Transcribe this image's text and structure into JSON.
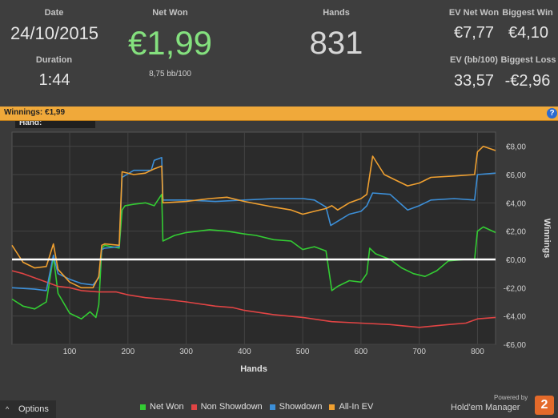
{
  "stats": {
    "date_label": "Date",
    "date_value": "24/10/2015",
    "duration_label": "Duration",
    "duration_value": "1:44",
    "net_won_label": "Net Won",
    "net_won_value": "€1,99",
    "net_won_sub": "8,75 bb/100",
    "hands_label": "Hands",
    "hands_value": "831",
    "ev_net_won_label": "EV Net Won",
    "ev_net_won_value": "€7,77",
    "biggest_win_label": "Biggest Win",
    "biggest_win_value": "€4,10",
    "ev_bb_label": "EV (bb/100)",
    "ev_bb_value": "33,57",
    "biggest_loss_label": "Biggest Loss",
    "biggest_loss_value": "-€2,96"
  },
  "winnings_bar": {
    "label": "Winnings: €1,99",
    "help": "?"
  },
  "chart_data": {
    "type": "line",
    "hover_label": "Hand:",
    "xlabel": "Hands",
    "ylabel": "Winnings",
    "xlim": [
      1,
      831
    ],
    "ylim": [
      -6,
      9
    ],
    "x_ticks": [
      100,
      200,
      300,
      400,
      500,
      600,
      700,
      800
    ],
    "y_ticks": [
      -6,
      -4,
      -2,
      0,
      2,
      4,
      6,
      8
    ],
    "y_tick_labels": [
      "-€6,00",
      "-€4,00",
      "-€2,00",
      "€0,00",
      "€2,00",
      "€4,00",
      "€6,00",
      "€8,00"
    ],
    "grid": true,
    "zero_line": true,
    "series": [
      {
        "name": "Net Won",
        "color": "#33cc33",
        "points": [
          [
            1,
            -2.8
          ],
          [
            20,
            -3.3
          ],
          [
            40,
            -3.5
          ],
          [
            60,
            -3.0
          ],
          [
            72,
            0.2
          ],
          [
            80,
            -2.4
          ],
          [
            100,
            -3.8
          ],
          [
            120,
            -4.2
          ],
          [
            135,
            -3.7
          ],
          [
            145,
            -4.1
          ],
          [
            150,
            -3.2
          ],
          [
            155,
            0.8
          ],
          [
            160,
            1.0
          ],
          [
            185,
            0.8
          ],
          [
            190,
            3.5
          ],
          [
            195,
            3.8
          ],
          [
            210,
            3.9
          ],
          [
            230,
            4.0
          ],
          [
            245,
            3.8
          ],
          [
            258,
            4.6
          ],
          [
            260,
            1.3
          ],
          [
            280,
            1.7
          ],
          [
            300,
            1.9
          ],
          [
            320,
            2.0
          ],
          [
            340,
            2.1
          ],
          [
            370,
            2.0
          ],
          [
            400,
            1.8
          ],
          [
            420,
            1.7
          ],
          [
            450,
            1.4
          ],
          [
            480,
            1.3
          ],
          [
            500,
            0.7
          ],
          [
            520,
            0.9
          ],
          [
            540,
            0.6
          ],
          [
            550,
            -2.2
          ],
          [
            560,
            -1.9
          ],
          [
            580,
            -1.5
          ],
          [
            600,
            -1.6
          ],
          [
            610,
            -1.0
          ],
          [
            615,
            0.8
          ],
          [
            625,
            0.4
          ],
          [
            650,
            0.0
          ],
          [
            670,
            -0.6
          ],
          [
            690,
            -1.0
          ],
          [
            710,
            -1.2
          ],
          [
            730,
            -0.8
          ],
          [
            750,
            -0.1
          ],
          [
            780,
            0.0
          ],
          [
            795,
            0.0
          ],
          [
            800,
            2.0
          ],
          [
            810,
            2.3
          ],
          [
            831,
            1.9
          ]
        ]
      },
      {
        "name": "Non Showdown",
        "color": "#e04444",
        "points": [
          [
            1,
            -0.8
          ],
          [
            20,
            -1.0
          ],
          [
            40,
            -1.3
          ],
          [
            60,
            -1.6
          ],
          [
            80,
            -1.9
          ],
          [
            100,
            -2.0
          ],
          [
            120,
            -2.2
          ],
          [
            150,
            -2.3
          ],
          [
            180,
            -2.3
          ],
          [
            200,
            -2.5
          ],
          [
            230,
            -2.7
          ],
          [
            260,
            -2.8
          ],
          [
            300,
            -3.0
          ],
          [
            350,
            -3.3
          ],
          [
            380,
            -3.4
          ],
          [
            400,
            -3.6
          ],
          [
            450,
            -3.9
          ],
          [
            500,
            -4.1
          ],
          [
            550,
            -4.4
          ],
          [
            600,
            -4.5
          ],
          [
            650,
            -4.6
          ],
          [
            700,
            -4.8
          ],
          [
            750,
            -4.6
          ],
          [
            780,
            -4.5
          ],
          [
            800,
            -4.2
          ],
          [
            831,
            -4.1
          ]
        ]
      },
      {
        "name": "Showdown",
        "color": "#3c8fd8",
        "points": [
          [
            1,
            -2.0
          ],
          [
            40,
            -2.1
          ],
          [
            60,
            -2.2
          ],
          [
            72,
            0.3
          ],
          [
            80,
            -1.0
          ],
          [
            100,
            -1.4
          ],
          [
            120,
            -1.7
          ],
          [
            140,
            -1.8
          ],
          [
            150,
            -1.3
          ],
          [
            155,
            0.7
          ],
          [
            160,
            0.8
          ],
          [
            185,
            0.9
          ],
          [
            190,
            5.8
          ],
          [
            210,
            6.3
          ],
          [
            230,
            6.3
          ],
          [
            240,
            6.3
          ],
          [
            245,
            7.0
          ],
          [
            258,
            7.2
          ],
          [
            260,
            4.2
          ],
          [
            300,
            4.2
          ],
          [
            350,
            4.1
          ],
          [
            400,
            4.2
          ],
          [
            450,
            4.3
          ],
          [
            500,
            4.3
          ],
          [
            520,
            4.2
          ],
          [
            540,
            3.7
          ],
          [
            548,
            2.4
          ],
          [
            560,
            2.7
          ],
          [
            580,
            3.2
          ],
          [
            600,
            3.4
          ],
          [
            610,
            3.8
          ],
          [
            620,
            4.7
          ],
          [
            650,
            4.6
          ],
          [
            680,
            3.5
          ],
          [
            700,
            3.8
          ],
          [
            720,
            4.2
          ],
          [
            760,
            4.3
          ],
          [
            795,
            4.2
          ],
          [
            800,
            6.0
          ],
          [
            831,
            6.1
          ]
        ]
      },
      {
        "name": "All-In EV",
        "color": "#f0a030",
        "points": [
          [
            1,
            1.0
          ],
          [
            20,
            -0.2
          ],
          [
            40,
            -0.6
          ],
          [
            60,
            -0.5
          ],
          [
            72,
            1.1
          ],
          [
            80,
            -0.7
          ],
          [
            100,
            -1.6
          ],
          [
            120,
            -2.0
          ],
          [
            140,
            -2.0
          ],
          [
            150,
            -1.2
          ],
          [
            155,
            1.0
          ],
          [
            160,
            1.1
          ],
          [
            185,
            1.0
          ],
          [
            190,
            6.2
          ],
          [
            210,
            6.0
          ],
          [
            230,
            6.1
          ],
          [
            240,
            6.3
          ],
          [
            245,
            6.4
          ],
          [
            258,
            6.6
          ],
          [
            260,
            4.0
          ],
          [
            300,
            4.1
          ],
          [
            340,
            4.3
          ],
          [
            370,
            4.4
          ],
          [
            400,
            4.1
          ],
          [
            450,
            3.7
          ],
          [
            480,
            3.5
          ],
          [
            500,
            3.2
          ],
          [
            520,
            3.4
          ],
          [
            540,
            3.6
          ],
          [
            550,
            3.8
          ],
          [
            560,
            3.5
          ],
          [
            580,
            4.0
          ],
          [
            600,
            4.3
          ],
          [
            610,
            4.6
          ],
          [
            620,
            7.3
          ],
          [
            640,
            6.0
          ],
          [
            660,
            5.6
          ],
          [
            680,
            5.2
          ],
          [
            700,
            5.4
          ],
          [
            720,
            5.8
          ],
          [
            760,
            5.9
          ],
          [
            795,
            6.0
          ],
          [
            800,
            7.6
          ],
          [
            810,
            8.0
          ],
          [
            831,
            7.7
          ]
        ]
      }
    ]
  },
  "footer": {
    "options_label": "Options",
    "powered_by": "Powered by",
    "brand": "Hold'em Manager",
    "brand_badge": "2"
  }
}
